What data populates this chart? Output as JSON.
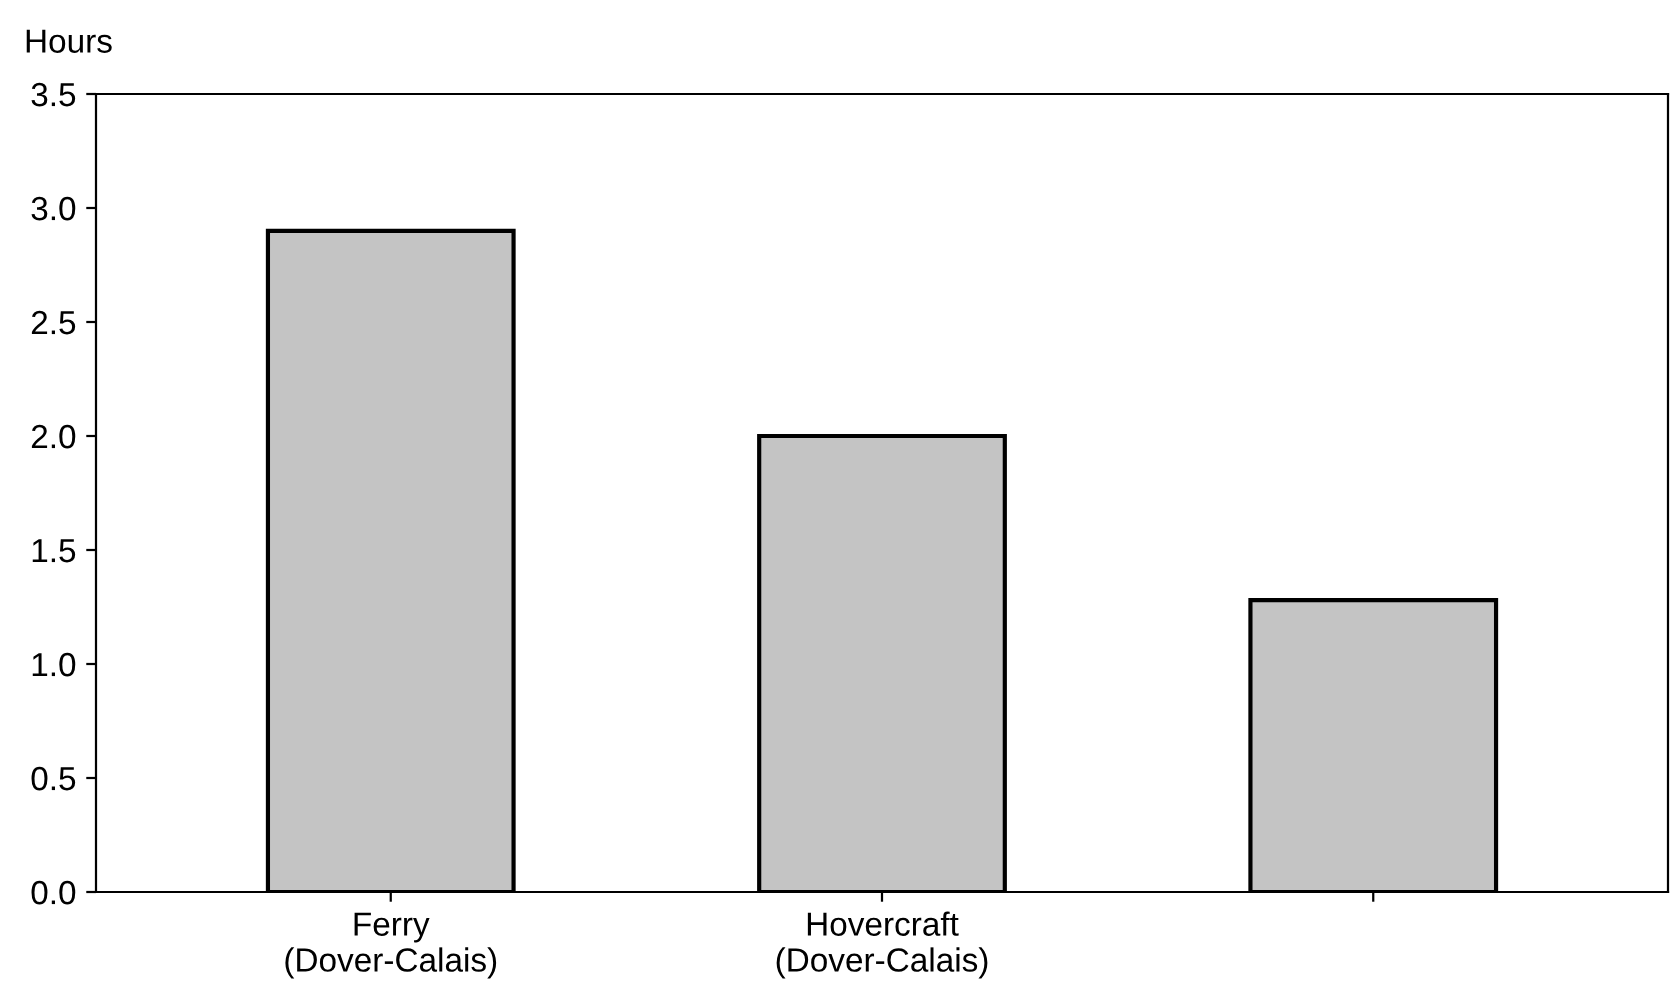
{
  "chart_data": {
    "type": "bar",
    "ylabel": "Hours",
    "categories": [
      "Ferry\n(Dover-Calais)",
      "Hovercraft\n(Dover-Calais)",
      null
    ],
    "values": [
      2.9,
      2.0,
      1.28
    ],
    "color": "#c4c4c4",
    "ylim": [
      0,
      3.5
    ],
    "yticks": [
      {
        "value": 0,
        "label": "0.0"
      },
      {
        "value": 0.5,
        "label": "0.5"
      },
      {
        "value": 1,
        "label": "1.0"
      },
      {
        "value": 1.5,
        "label": "1.5"
      },
      {
        "value": 2,
        "label": "2.0"
      },
      {
        "value": 2.5,
        "label": "2.5"
      },
      {
        "value": 3,
        "label": "3.0"
      },
      {
        "value": 3.5,
        "label": "3.5"
      }
    ],
    "grid": false
  }
}
